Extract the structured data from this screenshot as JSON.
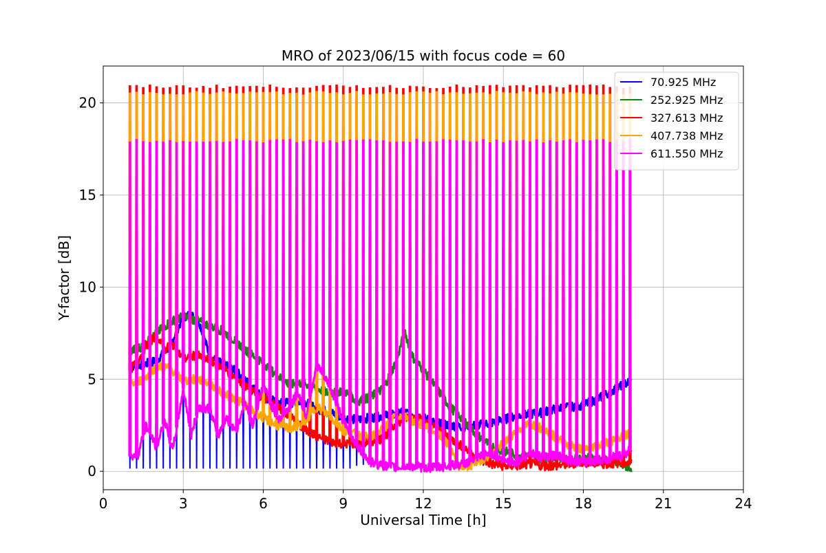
{
  "chart_data": {
    "type": "line",
    "title": "MRO of 2023/06/15 with focus code = 60",
    "xlabel": "Universal Time [h]",
    "ylabel": "Y-factor [dB]",
    "xlim": [
      0,
      24
    ],
    "ylim": [
      -1,
      22
    ],
    "xticks": [
      0,
      3,
      6,
      9,
      12,
      15,
      18,
      21,
      24
    ],
    "yticks": [
      0,
      5,
      10,
      15,
      20
    ],
    "grid": true,
    "legend_position": "top-right",
    "calibration_pulses": {
      "start_hour": 1.0,
      "end_hour": 19.8,
      "interval_hours": 0.25
    },
    "series": [
      {
        "name": " 70.925 MHz",
        "color": "#0000ff",
        "pulse_floor": 0.15,
        "pulse_floor_end_hour": 9.3,
        "pulse_range_hours": [
          1.0,
          19.8
        ],
        "x": [
          1.0,
          1.5,
          2.0,
          2.5,
          3.0,
          3.3,
          3.6,
          4.0,
          4.5,
          5.0,
          5.5,
          6.0,
          6.5,
          7.0,
          7.5,
          8.0,
          8.5,
          9.0,
          9.5,
          10.0,
          10.5,
          11.0,
          11.3,
          11.6,
          12.0,
          12.5,
          13.0,
          13.5,
          14.0,
          14.5,
          15.0,
          15.5,
          16.0,
          16.5,
          17.0,
          17.5,
          18.0,
          18.5,
          19.0,
          19.5,
          19.8
        ],
        "y": [
          5.7,
          5.8,
          6.0,
          6.8,
          8.4,
          8.5,
          8.1,
          6.2,
          5.8,
          5.4,
          4.7,
          4.0,
          3.8,
          3.7,
          3.8,
          3.4,
          3.2,
          2.9,
          2.8,
          2.9,
          3.0,
          3.1,
          3.2,
          3.1,
          2.9,
          2.6,
          2.5,
          2.4,
          2.5,
          2.6,
          2.8,
          3.0,
          3.1,
          3.2,
          3.4,
          3.5,
          3.6,
          3.9,
          4.3,
          4.7,
          4.9
        ]
      },
      {
        "name": "252.925 MHz",
        "color": "#1a7f1a",
        "x": [
          1.0,
          1.5,
          2.0,
          2.5,
          3.0,
          3.5,
          4.0,
          4.5,
          5.0,
          5.5,
          6.0,
          6.5,
          7.0,
          7.5,
          8.0,
          8.5,
          9.0,
          9.5,
          10.0,
          10.5,
          11.0,
          11.3,
          11.6,
          12.0,
          12.5,
          13.0,
          13.5,
          14.0,
          14.5,
          15.0,
          15.5,
          16.0,
          16.5,
          17.0,
          17.5,
          18.0,
          18.5,
          19.0,
          19.5,
          19.8
        ],
        "y": [
          6.5,
          6.8,
          7.5,
          8.1,
          8.4,
          8.2,
          7.9,
          7.6,
          7.0,
          6.4,
          5.9,
          5.2,
          4.7,
          4.8,
          4.5,
          4.2,
          4.4,
          3.8,
          4.0,
          4.5,
          6.0,
          7.6,
          6.2,
          5.5,
          4.5,
          3.5,
          2.8,
          2.0,
          1.4,
          1.1,
          0.9,
          0.8,
          0.7,
          0.8,
          0.6,
          0.7,
          0.7,
          0.5,
          0.3,
          0.2
        ]
      },
      {
        "name": "327.613 MHz",
        "color": "#ff0000",
        "pulse_peak": 20.85,
        "pulse_range_hours": [
          1.0,
          19.8
        ],
        "x": [
          1.0,
          1.3,
          1.6,
          2.0,
          2.3,
          2.6,
          3.0,
          3.5,
          4.0,
          4.5,
          5.0,
          5.5,
          6.0,
          6.5,
          7.0,
          7.5,
          8.0,
          8.5,
          9.0,
          9.5,
          10.0,
          10.5,
          11.0,
          11.5,
          12.0,
          12.5,
          13.0,
          13.5,
          14.0,
          14.5,
          15.0,
          15.5,
          16.0,
          16.5,
          17.0,
          17.5,
          18.0,
          18.5,
          19.0,
          19.5,
          19.8
        ],
        "y": [
          5.5,
          6.0,
          6.8,
          7.4,
          6.6,
          6.9,
          6.1,
          6.3,
          6.0,
          5.6,
          5.0,
          4.4,
          4.0,
          3.5,
          3.0,
          2.3,
          1.9,
          1.6,
          1.5,
          1.5,
          1.6,
          1.8,
          2.6,
          3.0,
          2.8,
          2.3,
          1.8,
          1.3,
          0.8,
          0.4,
          0.3,
          0.3,
          0.4,
          0.3,
          0.3,
          0.4,
          0.5,
          0.4,
          0.4,
          0.5,
          0.5
        ]
      },
      {
        "name": "407.738 MHz",
        "color": "#ffa500",
        "pulse_peak": 20.5,
        "pulse_range_hours": [
          1.0,
          19.8
        ],
        "x": [
          1.0,
          1.5,
          2.0,
          2.5,
          3.0,
          3.5,
          4.0,
          4.5,
          5.0,
          5.5,
          6.0,
          6.5,
          7.0,
          7.5,
          8.0,
          8.5,
          9.0,
          9.5,
          10.0,
          10.5,
          11.0,
          11.5,
          12.0,
          12.5,
          13.0,
          13.3,
          13.6,
          14.0,
          14.5,
          15.0,
          15.5,
          16.0,
          16.5,
          17.0,
          17.5,
          18.0,
          18.5,
          19.0,
          19.5,
          19.8
        ],
        "y": [
          4.7,
          5.0,
          5.7,
          5.6,
          4.9,
          5.0,
          4.8,
          4.2,
          3.9,
          3.4,
          2.9,
          2.5,
          2.3,
          2.6,
          3.5,
          3.0,
          2.2,
          2.0,
          1.8,
          2.3,
          3.1,
          2.8,
          2.5,
          2.1,
          1.3,
          0.3,
          0.2,
          0.5,
          0.9,
          1.5,
          2.2,
          2.6,
          2.3,
          1.8,
          1.4,
          1.2,
          1.4,
          1.6,
          1.9,
          2.1
        ]
      },
      {
        "name": "611.550 MHz",
        "color": "#ff00ff",
        "pulse_peak": 17.9,
        "pulse_range_hours": [
          1.0,
          19.8
        ],
        "x": [
          1.0,
          1.3,
          1.6,
          2.0,
          2.3,
          2.6,
          3.0,
          3.3,
          3.6,
          4.0,
          4.3,
          4.6,
          5.0,
          5.3,
          5.6,
          6.0,
          6.3,
          6.6,
          7.0,
          7.3,
          7.6,
          8.0,
          8.5,
          9.0,
          9.5,
          10.0,
          10.5,
          11.0,
          11.5,
          12.0,
          12.5,
          13.0,
          13.5,
          14.0,
          14.5,
          15.0,
          15.5,
          16.0,
          16.5,
          17.0,
          17.5,
          18.0,
          18.5,
          19.0,
          19.5,
          19.8
        ],
        "y": [
          0.8,
          0.9,
          2.5,
          1.3,
          2.8,
          1.1,
          4.5,
          2.0,
          3.5,
          3.4,
          1.9,
          2.9,
          2.2,
          3.8,
          2.5,
          4.7,
          3.6,
          2.8,
          3.5,
          4.3,
          3.0,
          5.8,
          4.6,
          2.7,
          1.4,
          0.5,
          0.3,
          0.2,
          0.3,
          0.2,
          0.2,
          0.3,
          0.4,
          0.7,
          1.0,
          0.6,
          0.5,
          1.0,
          0.7,
          0.9,
          0.6,
          0.5,
          0.6,
          0.7,
          0.9,
          1.2
        ]
      }
    ]
  }
}
